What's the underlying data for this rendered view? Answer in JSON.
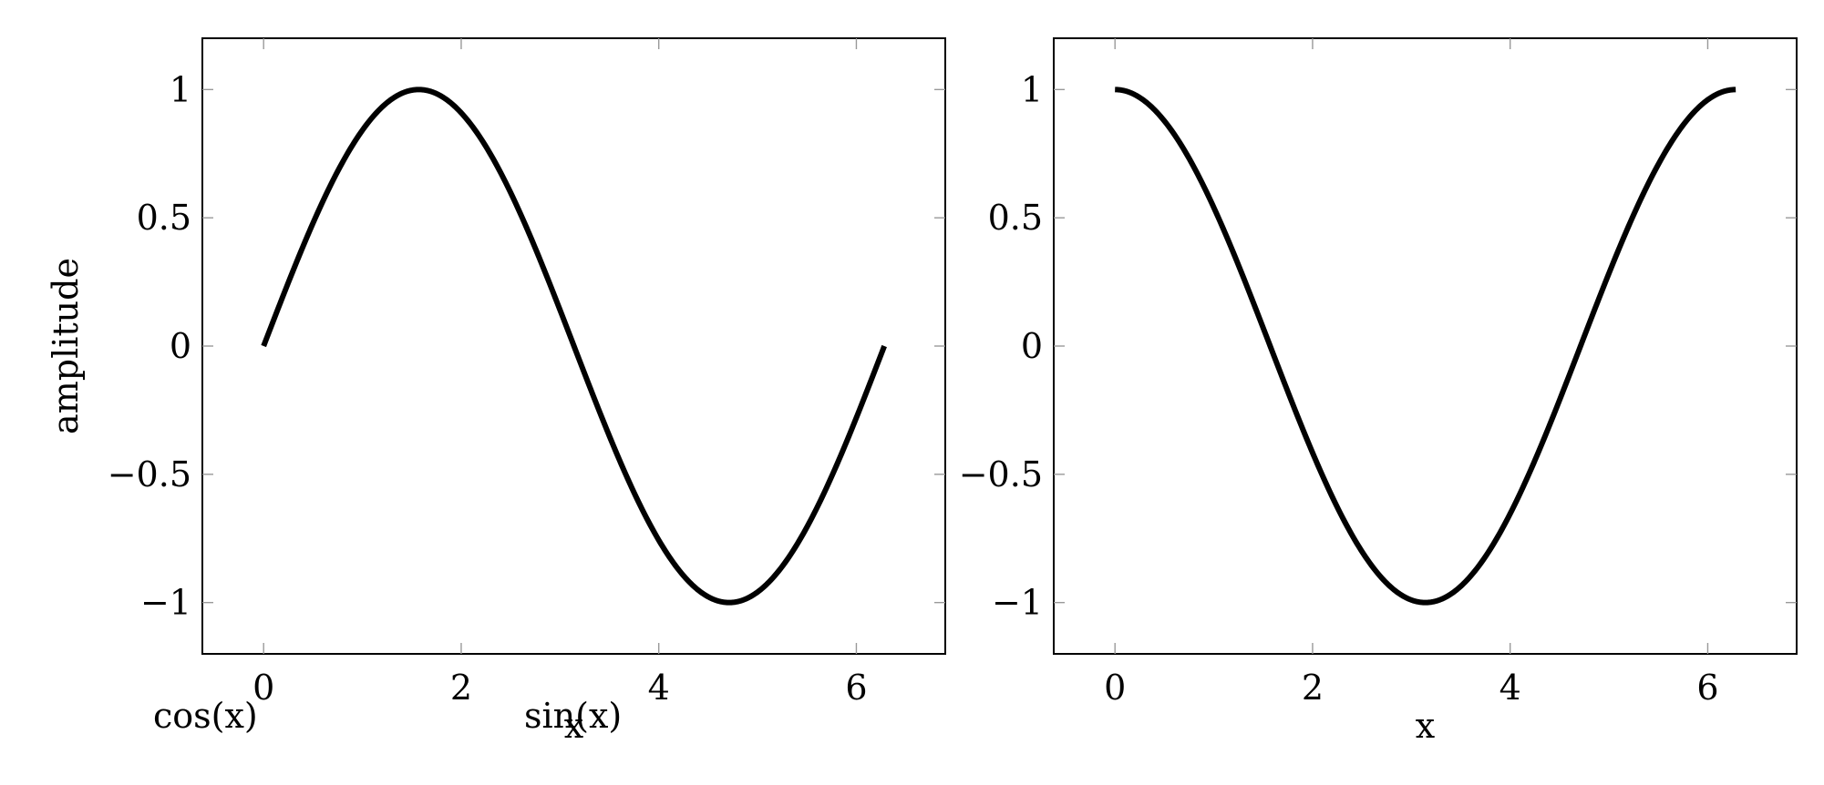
{
  "chart_data": [
    {
      "type": "line",
      "title": "",
      "xlabel": "x",
      "ylabel": "amplitude",
      "xlim": [
        -0.62,
        6.9
      ],
      "ylim": [
        -1.2,
        1.2
      ],
      "xticks": [
        0,
        2,
        4,
        6
      ],
      "yticks": [
        -1,
        -0.5,
        0,
        0.5,
        1
      ],
      "xtick_labels": [
        "0",
        "2",
        "4",
        "6"
      ],
      "ytick_labels": [
        "−1",
        "−0.5",
        "0",
        "0.5",
        "1"
      ],
      "grid": false,
      "series": [
        {
          "function": "sin",
          "color": "#000000",
          "x": [
            0,
            0.25,
            0.5,
            0.75,
            1.0,
            1.25,
            1.5,
            1.75,
            2.0,
            2.25,
            2.5,
            2.75,
            3.0,
            3.25,
            3.5,
            3.75,
            4.0,
            4.25,
            4.5,
            4.75,
            5.0,
            5.25,
            5.5,
            5.75,
            6.0,
            6.25
          ],
          "y": [
            0,
            0.247,
            0.479,
            0.682,
            0.841,
            0.949,
            0.997,
            0.984,
            0.909,
            0.778,
            0.598,
            0.382,
            0.141,
            -0.108,
            -0.351,
            -0.572,
            -0.757,
            -0.895,
            -0.978,
            -0.999,
            -0.959,
            -0.859,
            -0.706,
            -0.508,
            -0.279,
            -0.033
          ]
        }
      ]
    },
    {
      "type": "line",
      "title": "",
      "xlabel": "x",
      "ylabel": "",
      "xlim": [
        -0.62,
        6.9
      ],
      "ylim": [
        -1.2,
        1.2
      ],
      "xticks": [
        0,
        2,
        4,
        6
      ],
      "yticks": [
        -1,
        -0.5,
        0,
        0.5,
        1
      ],
      "xtick_labels": [
        "0",
        "2",
        "4",
        "6"
      ],
      "ytick_labels": [
        "−1",
        "−0.5",
        "0",
        "0.5",
        "1"
      ],
      "grid": false,
      "series": [
        {
          "function": "cos",
          "color": "#000000",
          "x": [
            0,
            0.25,
            0.5,
            0.75,
            1.0,
            1.25,
            1.5,
            1.75,
            2.0,
            2.25,
            2.5,
            2.75,
            3.0,
            3.25,
            3.5,
            3.75,
            4.0,
            4.25,
            4.5,
            4.75,
            5.0,
            5.25,
            5.5,
            5.75,
            6.0,
            6.25
          ],
          "y": [
            1,
            0.969,
            0.878,
            0.732,
            0.54,
            0.315,
            0.071,
            -0.178,
            -0.416,
            -0.628,
            -0.801,
            -0.924,
            -0.99,
            -0.994,
            -0.936,
            -0.82,
            -0.654,
            -0.446,
            -0.211,
            0.038,
            0.284,
            0.512,
            0.709,
            0.861,
            0.96,
            0.999
          ]
        }
      ]
    }
  ],
  "legend": {
    "entries": [
      "cos(x)",
      "sin(x)"
    ],
    "placement": "bottom-left, below plots"
  }
}
